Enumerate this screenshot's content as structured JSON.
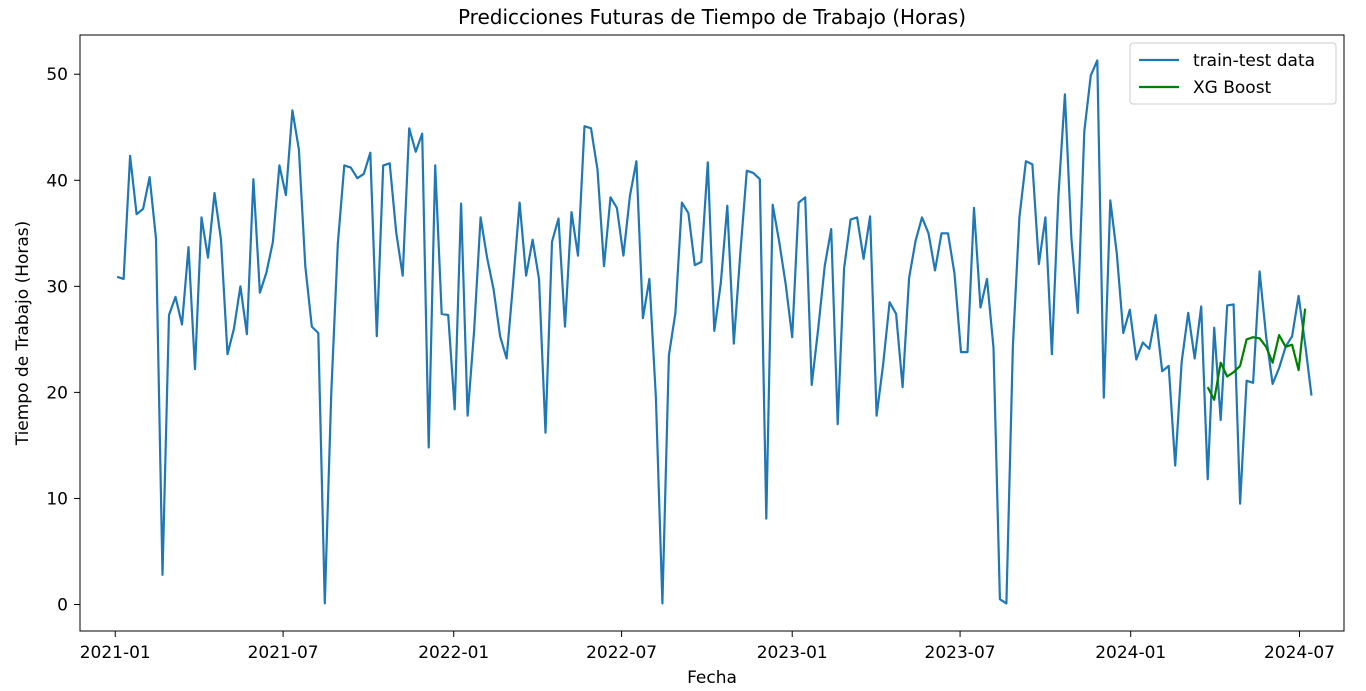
{
  "chart_data": {
    "type": "line",
    "title": "Predicciones Futuras de Tiempo de Trabajo (Horas)",
    "xlabel": "Fecha",
    "ylabel": "Tiempo de Trabajo (Horas)",
    "xlim": [
      "2020-11-24",
      "2024-08-18"
    ],
    "ylim": [
      -2.5,
      53.7
    ],
    "x_ticks": [
      {
        "date": "2021-01-01",
        "label": "2021-01"
      },
      {
        "date": "2021-07-01",
        "label": "2021-07"
      },
      {
        "date": "2022-01-01",
        "label": "2022-01"
      },
      {
        "date": "2022-07-01",
        "label": "2022-07"
      },
      {
        "date": "2023-01-01",
        "label": "2023-01"
      },
      {
        "date": "2023-07-01",
        "label": "2023-07"
      },
      {
        "date": "2024-01-01",
        "label": "2024-01"
      },
      {
        "date": "2024-07-01",
        "label": "2024-07"
      }
    ],
    "y_ticks": [
      0,
      10,
      20,
      30,
      40,
      50
    ],
    "legend_position": "top-right",
    "grid": false,
    "series": [
      {
        "name": "train-test data",
        "color": "#1f77b4",
        "start_date": "2021-01-03",
        "interval_days": 7,
        "values": [
          30.9,
          30.7,
          42.3,
          36.8,
          37.3,
          40.3,
          34.5,
          2.8,
          27.3,
          29.0,
          26.4,
          33.7,
          22.2,
          36.5,
          32.7,
          38.8,
          34.4,
          23.6,
          26.0,
          30.0,
          25.5,
          40.1,
          29.4,
          31.3,
          34.2,
          41.4,
          38.6,
          46.6,
          42.9,
          31.9,
          26.2,
          25.6,
          0.1,
          20.0,
          34.0,
          41.4,
          41.2,
          40.2,
          40.6,
          42.6,
          25.3,
          41.4,
          41.6,
          35.1,
          31.0,
          44.9,
          42.7,
          44.4,
          14.8,
          41.4,
          27.4,
          27.3,
          18.4,
          37.8,
          17.8,
          25.8,
          36.5,
          32.7,
          29.7,
          25.3,
          23.2,
          30.3,
          37.9,
          31.0,
          34.4,
          30.7,
          16.2,
          34.2,
          36.4,
          26.2,
          37.0,
          32.9,
          45.1,
          44.9,
          41.0,
          31.9,
          38.4,
          37.4,
          32.9,
          38.5,
          41.8,
          27.0,
          30.7,
          19.5,
          0.1,
          23.5,
          27.5,
          37.9,
          36.9,
          32.0,
          32.3,
          41.7,
          25.8,
          30.3,
          37.6,
          24.6,
          33.1,
          40.9,
          40.7,
          40.1,
          8.1,
          37.7,
          34.2,
          30.2,
          25.2,
          37.9,
          38.4,
          20.7,
          26.0,
          31.9,
          35.4,
          17.0,
          31.7,
          36.3,
          36.5,
          32.6,
          36.6,
          17.8,
          22.6,
          28.5,
          27.4,
          20.5,
          30.8,
          34.3,
          36.5,
          35.0,
          31.5,
          35.0,
          35.0,
          31.2,
          23.8,
          23.8,
          37.4,
          28.0,
          30.7,
          24.2,
          0.5,
          0.1,
          24.4,
          36.5,
          41.8,
          41.5,
          32.1,
          36.5,
          23.6,
          38.5,
          48.1,
          34.5,
          27.5,
          44.6,
          49.9,
          51.3,
          19.5,
          38.1,
          33.1,
          25.6,
          27.8,
          23.1,
          24.7,
          24.1,
          27.3,
          22.0,
          22.5,
          13.1,
          22.9,
          27.5,
          23.2,
          28.1,
          11.8,
          26.1,
          17.4,
          28.2,
          28.3,
          9.5,
          21.1,
          20.9,
          31.4,
          25.3,
          20.8,
          22.3,
          24.3,
          25.3,
          29.1,
          24.6,
          19.7
        ]
      },
      {
        "name": "XG Boost",
        "color": "#008000",
        "start_date": "2024-03-24",
        "interval_days": 7,
        "values": [
          20.5,
          19.3,
          22.8,
          21.5,
          21.9,
          22.5,
          25.0,
          25.2,
          25.1,
          24.3,
          22.8,
          25.4,
          24.3,
          24.5,
          22.1,
          27.9
        ]
      }
    ]
  }
}
